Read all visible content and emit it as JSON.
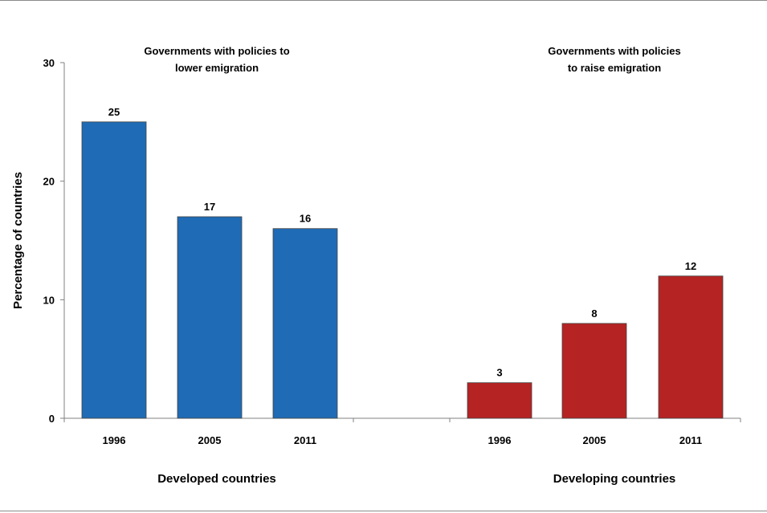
{
  "chart_data": {
    "type": "bar",
    "ylabel": "Percentage of countries",
    "ylim": [
      0,
      30
    ],
    "yticks": [
      0,
      10,
      20,
      30
    ],
    "grid": false,
    "groups": [
      {
        "title_lines": [
          "Governments with policies to",
          "lower emigration"
        ],
        "label": "Developed countries",
        "categories": [
          "1996",
          "2005",
          "2011"
        ],
        "values": [
          25,
          17,
          16
        ],
        "value_labels": [
          "25",
          "17",
          "16"
        ],
        "color": "#1f6bb5"
      },
      {
        "title_lines": [
          "Governments with policies",
          "to raise emigration"
        ],
        "label": "Developing countries",
        "categories": [
          "1996",
          "2005",
          "2011"
        ],
        "values": [
          3,
          8,
          12
        ],
        "value_labels": [
          "3",
          "8",
          "12"
        ],
        "color": "#b52323"
      }
    ]
  }
}
